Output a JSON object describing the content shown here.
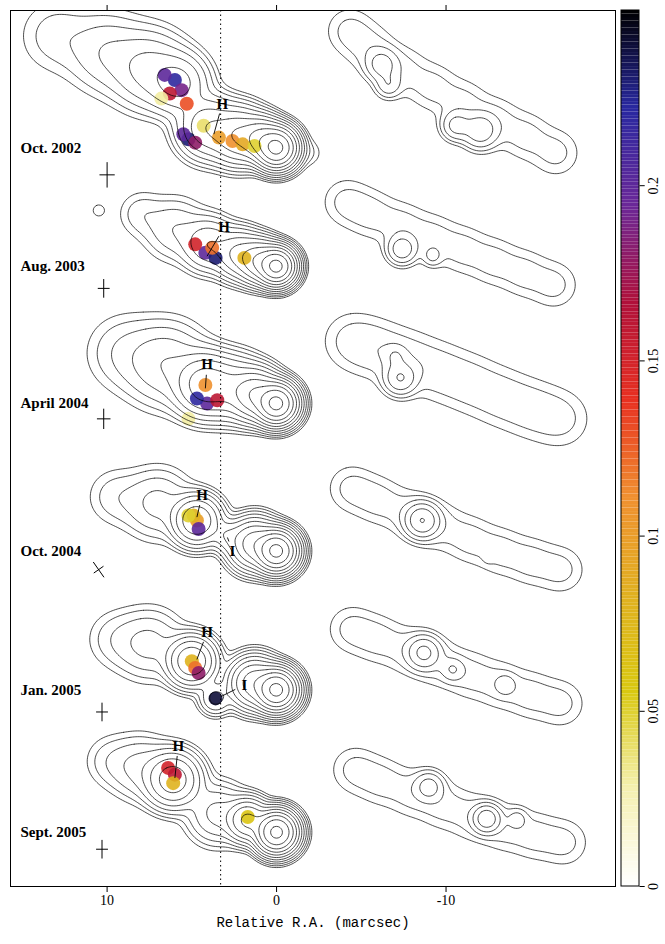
{
  "chart_data": {
    "type": "contour",
    "x_label": "Relative R.A. (marcsec)",
    "xlim": [
      15.7,
      -20
    ],
    "xticks": [
      10,
      0,
      -10
    ],
    "ylim": [
      0,
      51.7
    ],
    "tick_labels": "x",
    "contour_levels": [
      0.002,
      0.004,
      0.008,
      0.016,
      0.032,
      0.064,
      0.128,
      0.256,
      0.512,
      1.024,
      2.048
    ],
    "colorbar": {
      "range": [
        0,
        0.25
      ],
      "ticks": [
        0,
        0.05,
        0.1,
        0.15,
        0.2
      ]
    },
    "vertical_line": {
      "x": 3.3,
      "line_style": "dotted"
    },
    "epochs": [
      {
        "label": "Oct. 2002",
        "total_intensity": [
          [
            0,
            43.6,
            2.5,
            0.55
          ],
          [
            0.9,
            44.1,
            0.6,
            0.6
          ],
          [
            2.2,
            44.3,
            0.25,
            0.8
          ],
          [
            4.0,
            44.8,
            0.12,
            0.9
          ],
          [
            5.8,
            47.4,
            0.08,
            0.9
          ],
          [
            7.5,
            48.2,
            0.04,
            1.2
          ],
          [
            10,
            49.2,
            0.015,
            1.3
          ],
          [
            13,
            50.2,
            0.006,
            1.3
          ],
          [
            -1.9,
            43.3,
            0.004,
            0.5
          ]
        ],
        "polarized_intensity": [
          [
            -16.5,
            43.3,
            0.005,
            0.9
          ],
          [
            -14.7,
            44.3,
            0.005,
            0.9
          ],
          [
            -12.9,
            45.2,
            0.005,
            0.9
          ],
          [
            -11,
            46.2,
            0.005,
            0.9
          ],
          [
            -9.2,
            47.2,
            0.005,
            0.9
          ],
          [
            -7.4,
            48.2,
            0.005,
            0.9
          ],
          [
            -5.6,
            49.4,
            0.005,
            0.9
          ],
          [
            -4.3,
            50.5,
            0.005,
            0.9
          ],
          [
            -6.2,
            48.5,
            0.02,
            0.55
          ],
          [
            -6.6,
            47.3,
            0.012,
            0.45
          ],
          [
            -10.6,
            44.9,
            0.02,
            0.5
          ],
          [
            -12,
            44.6,
            0.025,
            0.6
          ]
        ],
        "fractional_polarization": [
          [
            6.0,
            47.6,
            0.22
          ],
          [
            5.6,
            47.0,
            0.19
          ],
          [
            6.3,
            46.8,
            0.16
          ],
          [
            5.3,
            46.2,
            0.13
          ],
          [
            6.6,
            47.9,
            0.2
          ],
          [
            5.2,
            44.1,
            0.23
          ],
          [
            5.5,
            44.4,
            0.2
          ],
          [
            4.8,
            43.9,
            0.18
          ],
          [
            3.4,
            44.2,
            0.1
          ],
          [
            2.6,
            44.0,
            0.11
          ],
          [
            2.0,
            43.8,
            0.09
          ],
          [
            1.3,
            43.7,
            0.05
          ],
          [
            4.3,
            44.9,
            0.04
          ],
          [
            6.8,
            46.5,
            0.03
          ]
        ],
        "beam": {
          "x": 10,
          "y": 42.0,
          "major": 1.5,
          "minor": 0.9,
          "pa": 0
        },
        "annotations": [
          {
            "text": "H",
            "x": 3.2,
            "y": 46.2,
            "target_x": 3.7,
            "target_y": 44.4
          }
        ]
      },
      {
        "label": "Aug. 2003",
        "total_intensity": [
          [
            0,
            36.6,
            2.5,
            0.5
          ],
          [
            1,
            36.9,
            0.5,
            0.6
          ],
          [
            2.2,
            37.3,
            0.15,
            0.7
          ],
          [
            4,
            37.9,
            0.06,
            0.8
          ],
          [
            6,
            38.8,
            0.015,
            1
          ],
          [
            8,
            39.7,
            0.006,
            0.8
          ],
          [
            10.5,
            39.9,
            0.003,
            0.35
          ]
        ],
        "polarized_intensity": [
          [
            -16.4,
            35.5,
            0.005,
            0.9
          ],
          [
            -14.6,
            36.2,
            0.005,
            0.9
          ],
          [
            -12.8,
            36.9,
            0.005,
            0.9
          ],
          [
            -11,
            37.6,
            0.005,
            0.9
          ],
          [
            -9.2,
            38.3,
            0.005,
            0.9
          ],
          [
            -7.4,
            39,
            0.005,
            0.9
          ],
          [
            -5.6,
            39.7,
            0.005,
            0.9
          ],
          [
            -4.1,
            40.4,
            0.005,
            0.9
          ],
          [
            -7.4,
            37.6,
            0.025,
            0.5
          ],
          [
            -9.2,
            37.2,
            0.008,
            0.35
          ]
        ],
        "fractional_polarization": [
          [
            4.2,
            37.4,
            0.2
          ],
          [
            3.6,
            37.1,
            0.23
          ],
          [
            4.8,
            37.9,
            0.15
          ],
          [
            3.8,
            37.7,
            0.12
          ],
          [
            1.9,
            37.1,
            0.08
          ]
        ],
        "beam": {
          "x": 10.2,
          "y": 35.3,
          "major": 1.1,
          "minor": 0.7,
          "pa": 0
        },
        "annotations": [
          {
            "text": "H",
            "x": 3.1,
            "y": 38.9,
            "target_x": 4.1,
            "target_y": 37.2
          }
        ]
      },
      {
        "label": "April 2004",
        "total_intensity": [
          [
            0,
            28.5,
            2.5,
            0.55
          ],
          [
            1.2,
            29,
            0.5,
            0.7
          ],
          [
            2.5,
            29.4,
            0.12,
            0.9
          ],
          [
            4.2,
            29.6,
            0.2,
            0.9
          ],
          [
            6.5,
            30.8,
            0.03,
            1.3
          ],
          [
            9,
            31.5,
            0.008,
            1.3
          ]
        ],
        "polarized_intensity": [
          [
            -16.8,
            27.6,
            0.005,
            1.1
          ],
          [
            -15,
            28.2,
            0.005,
            1.1
          ],
          [
            -13.2,
            28.9,
            0.005,
            1.1
          ],
          [
            -11.4,
            29.7,
            0.005,
            1.1
          ],
          [
            -9.6,
            30.4,
            0.005,
            1.1
          ],
          [
            -7.8,
            31.1,
            0.005,
            1.1
          ],
          [
            -6,
            31.7,
            0.005,
            1.1
          ],
          [
            -4.4,
            32.2,
            0.005,
            1.1
          ],
          [
            -7.3,
            30.0,
            0.03,
            0.55
          ],
          [
            -7.0,
            31.3,
            0.01,
            0.4
          ]
        ],
        "fractional_polarization": [
          [
            4.1,
            28.5,
            0.2
          ],
          [
            4.7,
            28.8,
            0.22
          ],
          [
            3.5,
            28.7,
            0.16
          ],
          [
            4.2,
            29.6,
            0.11
          ],
          [
            5.2,
            27.6,
            0.03
          ]
        ],
        "beam": {
          "x": 10.2,
          "y": 27.6,
          "major": 1.2,
          "minor": 0.8,
          "pa": 0
        },
        "annotations": [
          {
            "text": "H",
            "x": 4.1,
            "y": 30.8,
            "target_x": 4.2,
            "target_y": 29.4
          }
        ]
      },
      {
        "label": "Oct. 2004",
        "total_intensity": [
          [
            0,
            19.8,
            2.5,
            0.55
          ],
          [
            1.3,
            20.2,
            0.4,
            0.7
          ],
          [
            2.9,
            20.7,
            0.05,
            0.5
          ],
          [
            4.7,
            21.6,
            0.25,
            0.7
          ],
          [
            7,
            22.6,
            0.02,
            1.1
          ],
          [
            9.5,
            23.0,
            0.006,
            1
          ]
        ],
        "polarized_intensity": [
          [
            -16.8,
            18.7,
            0.005,
            0.9
          ],
          [
            -15,
            19.2,
            0.005,
            0.9
          ],
          [
            -13.2,
            19.8,
            0.005,
            0.9
          ],
          [
            -11.4,
            20.5,
            0.005,
            0.9
          ],
          [
            -9.6,
            21.3,
            0.005,
            0.9
          ],
          [
            -7.8,
            22,
            0.005,
            0.9
          ],
          [
            -6,
            22.8,
            0.005,
            0.9
          ],
          [
            -4.4,
            23.5,
            0.005,
            0.9
          ],
          [
            -8.6,
            21.6,
            0.06,
            0.55
          ],
          [
            -12.5,
            19.4,
            0.003,
            0.2
          ]
        ],
        "fractional_polarization": [
          [
            4.7,
            21.6,
            0.1
          ],
          [
            4.9,
            21.9,
            0.08
          ],
          [
            4.6,
            21.1,
            0.2
          ],
          [
            5.2,
            21.9,
            0.05
          ]
        ],
        "beam": {
          "x": 10.5,
          "y": 18.7,
          "major": 1.1,
          "minor": 0.7,
          "pa": 35
        },
        "annotations": [
          {
            "text": "H",
            "x": 4.4,
            "y": 23.1,
            "target_x": 4.7,
            "target_y": 21.8
          },
          {
            "text": "I",
            "x": 2.6,
            "y": 19.8,
            "target_x": 2.9,
            "target_y": 20.6
          }
        ]
      },
      {
        "label": "Jan. 2005",
        "total_intensity": [
          [
            0,
            11.6,
            2.5,
            0.55
          ],
          [
            1.3,
            12,
            0.4,
            0.7
          ],
          [
            3.6,
            11.1,
            0.04,
            0.5
          ],
          [
            5.0,
            13.3,
            0.25,
            0.7
          ],
          [
            7.5,
            14.3,
            0.02,
            1.1
          ],
          [
            9.5,
            14.6,
            0.006,
            1
          ]
        ],
        "polarized_intensity": [
          [
            -16.8,
            10.8,
            0.005,
            0.9
          ],
          [
            -15,
            11.3,
            0.005,
            0.9
          ],
          [
            -13.2,
            11.9,
            0.005,
            0.9
          ],
          [
            -11.4,
            12.5,
            0.005,
            0.9
          ],
          [
            -9.6,
            13.2,
            0.005,
            0.9
          ],
          [
            -7.8,
            13.9,
            0.005,
            0.9
          ],
          [
            -6,
            14.6,
            0.005,
            0.9
          ],
          [
            -4.4,
            15.2,
            0.005,
            0.9
          ],
          [
            -8.7,
            13.8,
            0.035,
            0.55
          ],
          [
            -10.4,
            12.8,
            0.012,
            0.4
          ],
          [
            -13.5,
            11.9,
            0.01,
            0.35
          ]
        ],
        "fractional_polarization": [
          [
            5.0,
            13.3,
            0.08
          ],
          [
            4.8,
            12.9,
            0.12
          ],
          [
            4.6,
            12.6,
            0.18
          ],
          [
            3.6,
            11.1,
            0.24
          ]
        ],
        "beam": {
          "x": 10.3,
          "y": 10.3,
          "major": 1.1,
          "minor": 0.7,
          "pa": 0
        },
        "annotations": [
          {
            "text": "H",
            "x": 4.1,
            "y": 15.0,
            "target_x": 4.7,
            "target_y": 13.4
          },
          {
            "text": "I",
            "x": 1.9,
            "y": 11.9,
            "target_x": 3.3,
            "target_y": 11.2
          }
        ]
      },
      {
        "label": "Sept. 2005",
        "total_intensity": [
          [
            0,
            3.2,
            2.5,
            0.55
          ],
          [
            1.7,
            3.9,
            0.3,
            0.6
          ],
          [
            3.5,
            4.3,
            0.04,
            0.9
          ],
          [
            6.1,
            6.3,
            0.2,
            0.8
          ],
          [
            8,
            7,
            0.02,
            1
          ],
          [
            9.8,
            7.4,
            0.006,
            0.9
          ]
        ],
        "polarized_intensity": [
          [
            -17,
            2.6,
            0.005,
            0.9
          ],
          [
            -15.2,
            3.0,
            0.005,
            0.9
          ],
          [
            -13.4,
            3.5,
            0.005,
            0.9
          ],
          [
            -11.6,
            4.1,
            0.005,
            0.9
          ],
          [
            -9.8,
            4.8,
            0.005,
            0.9
          ],
          [
            -8,
            5.5,
            0.005,
            0.9
          ],
          [
            -6.2,
            6.2,
            0.005,
            0.9
          ],
          [
            -4.6,
            6.9,
            0.005,
            0.9
          ],
          [
            -9.0,
            5.9,
            0.02,
            0.5
          ],
          [
            -12.4,
            4.0,
            0.05,
            0.45
          ],
          [
            -14.2,
            4.0,
            0.008,
            0.35
          ]
        ],
        "fractional_polarization": [
          [
            6.4,
            7.0,
            0.15
          ],
          [
            6.0,
            6.6,
            0.16
          ],
          [
            6.1,
            6.1,
            0.08
          ],
          [
            1.7,
            4.1,
            0.06
          ]
        ],
        "beam": {
          "x": 10.3,
          "y": 2.2,
          "major": 1.1,
          "minor": 0.7,
          "pa": 0
        },
        "annotations": [
          {
            "text": "H",
            "x": 5.8,
            "y": 8.3,
            "target_x": 6.0,
            "target_y": 6.4
          }
        ]
      }
    ]
  }
}
